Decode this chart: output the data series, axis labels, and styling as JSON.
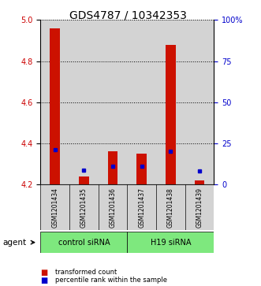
{
  "title": "GDS4787 / 10342353",
  "samples": [
    "GSM1201434",
    "GSM1201435",
    "GSM1201436",
    "GSM1201437",
    "GSM1201438",
    "GSM1201439"
  ],
  "red_bar_bottom": [
    4.2,
    4.2,
    4.2,
    4.2,
    4.2,
    4.2
  ],
  "red_bar_top": [
    4.96,
    4.24,
    4.36,
    4.35,
    4.88,
    4.22
  ],
  "blue_marker_pos": [
    4.37,
    4.27,
    4.29,
    4.29,
    4.36,
    4.265
  ],
  "ylim": [
    4.2,
    5.0
  ],
  "yticks_left": [
    4.2,
    4.4,
    4.6,
    4.8,
    5.0
  ],
  "yticks_right": [
    0,
    25,
    50,
    75,
    100
  ],
  "ylabel_left_color": "#cc0000",
  "ylabel_right_color": "#0000cc",
  "bar_color_red": "#cc1100",
  "bar_color_blue": "#0000cc",
  "bar_width": 0.35,
  "bg_sample": "#d3d3d3",
  "bg_group": "#7ee87e",
  "title_fontsize": 10,
  "tick_fontsize": 7,
  "sample_fontsize": 5.5,
  "legend_red": "transformed count",
  "legend_blue": "percentile rank within the sample",
  "group_ctrl_label": "control siRNA",
  "group_h19_label": "H19 siRNA",
  "agent_label": "agent"
}
